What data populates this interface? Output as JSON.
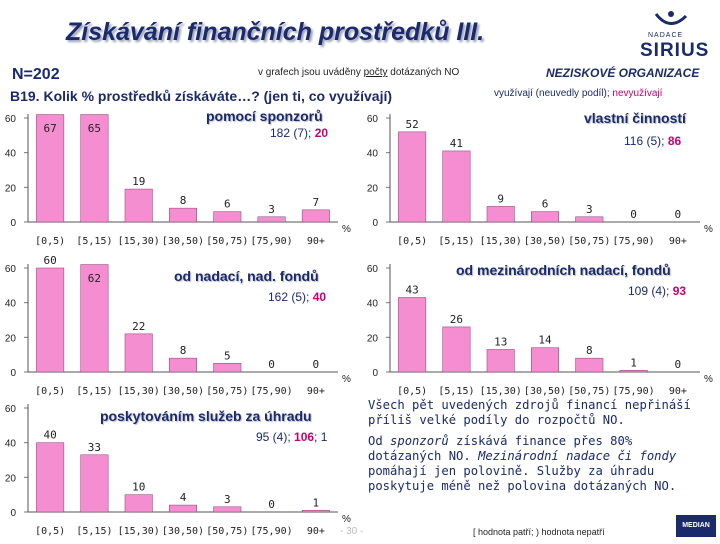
{
  "header": {
    "title": "Získávání finančních prostředků III.",
    "n": "N=202",
    "note_prefix": "v grafech jsou uváděny ",
    "note_underlined": "počty",
    "note_suffix": " dotázaných NO",
    "organization": "NEZISKOVÉ ORGANIZACE",
    "legend_main": "využívají (neuvedly podíl); ",
    "legend_red": "nevyužívají",
    "question": "B19. Kolik % prostředků získáváte…? (jen ti, co využívají)"
  },
  "logo": {
    "small": "NADACE",
    "big": "SIRIUS"
  },
  "colors": {
    "bar": "#f48ed0",
    "bar_border": "#8a3a6e",
    "accent": "#c8006e",
    "text": "#1b2a6b"
  },
  "chart_data": [
    {
      "type": "bar",
      "title": "pomocí sponzorů",
      "n_used": "182 (7); ",
      "n_not": "20",
      "categories": [
        "[0,5)",
        "[5,15)",
        "[15,30)",
        "[30,50)",
        "[50,75)",
        "[75,90)",
        "90+"
      ],
      "values": [
        67,
        65,
        19,
        8,
        6,
        3,
        7
      ],
      "ylim": [
        0,
        60
      ],
      "yticks": [
        "0",
        "20",
        "40",
        "60"
      ],
      "unit": "%"
    },
    {
      "type": "bar",
      "title": "vlastní činností",
      "n_used": "116 (5); ",
      "n_not": "86",
      "categories": [
        "[0,5)",
        "[5,15)",
        "[15,30)",
        "[30,50)",
        "[50,75)",
        "[75,90)",
        "90+"
      ],
      "values": [
        52,
        41,
        9,
        6,
        3,
        0,
        0
      ],
      "ylim": [
        0,
        60
      ],
      "yticks": [
        "0",
        "20",
        "40",
        "60"
      ],
      "unit": "%"
    },
    {
      "type": "bar",
      "title": "od nadací, nad. fondů",
      "n_used": "162 (5); ",
      "n_not": "40",
      "categories": [
        "[0,5)",
        "[5,15)",
        "[15,30)",
        "[30,50)",
        "[50,75)",
        "[75,90)",
        "90+"
      ],
      "values": [
        60,
        62,
        22,
        8,
        5,
        0,
        0
      ],
      "ylim": [
        0,
        60
      ],
      "yticks": [
        "0",
        "20",
        "40",
        "60"
      ],
      "unit": "%"
    },
    {
      "type": "bar",
      "title": "od mezinárodních nadací, fondů",
      "n_used": "109 (4); ",
      "n_not": "93",
      "categories": [
        "[0,5)",
        "[5,15)",
        "[15,30)",
        "[30,50)",
        "[50,75)",
        "[75,90)",
        "90+"
      ],
      "values": [
        43,
        26,
        13,
        14,
        8,
        1,
        0
      ],
      "ylim": [
        0,
        60
      ],
      "yticks": [
        "0",
        "20",
        "40",
        "60"
      ],
      "unit": "%"
    },
    {
      "type": "bar",
      "title": "poskytováním služeb za úhradu",
      "n_used": "95 (4); ",
      "n_not": "106",
      "n_tail": "; 1",
      "categories": [
        "[0,5)",
        "[5,15)",
        "[15,30)",
        "[30,50)",
        "[50,75)",
        "[75,90)",
        "90+"
      ],
      "values": [
        40,
        33,
        10,
        4,
        3,
        0,
        1
      ],
      "ylim": [
        0,
        60
      ],
      "yticks": [
        "0",
        "20",
        "40",
        "60"
      ],
      "unit": "%"
    }
  ],
  "summary": {
    "p1": "Všech pět uvedených zdrojů financí nepřináší příliš velké podíly do rozpočtů NO.",
    "p2_a": "Od ",
    "p2_b": "sponzorů",
    "p2_c": " získává finance přes 80% dotázaných NO. ",
    "p2_d": "Mezinárodní nadace či fondy",
    "p2_e": " pomáhají jen polovině. Služby za úhradu poskytuje méně než polovina dotázaných NO."
  },
  "footer": {
    "text": "[ hodnota patří;  ) hodnota nepatří",
    "page": "- 30 -",
    "median": "MEDIAN"
  }
}
